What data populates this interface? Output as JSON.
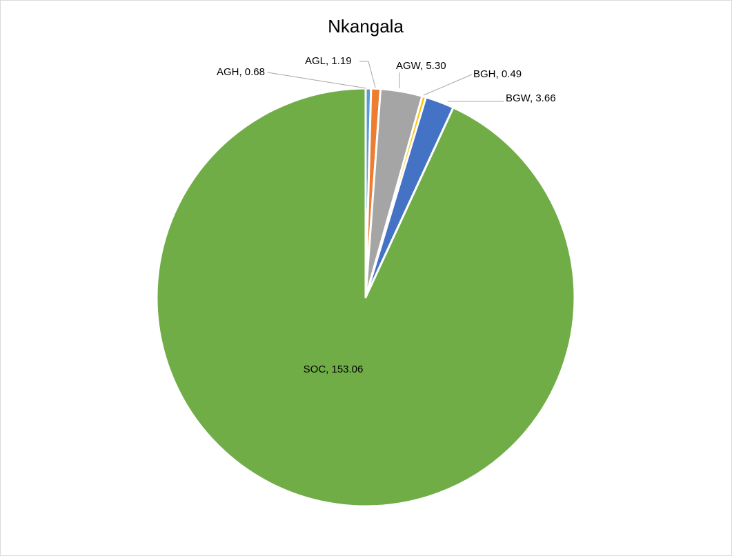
{
  "chart_data": {
    "type": "pie",
    "title": "Nkangala",
    "categories": [
      "AGH",
      "AGL",
      "AGW",
      "BGH",
      "BGW",
      "SOC"
    ],
    "values": [
      0.68,
      1.19,
      5.3,
      0.49,
      3.66,
      153.06
    ],
    "labels": [
      "AGH, 0.68",
      "AGL, 1.19",
      "AGW, 5.30",
      "BGH, 0.49",
      "BGW, 3.66",
      "SOC, 153.06"
    ],
    "colors": [
      "#5b9bd5",
      "#ed7d31",
      "#a5a5a5",
      "#ffc000",
      "#4472c4",
      "#70ad47"
    ],
    "start_angle": "12 o'clock",
    "direction": "clockwise",
    "legend": "none"
  }
}
